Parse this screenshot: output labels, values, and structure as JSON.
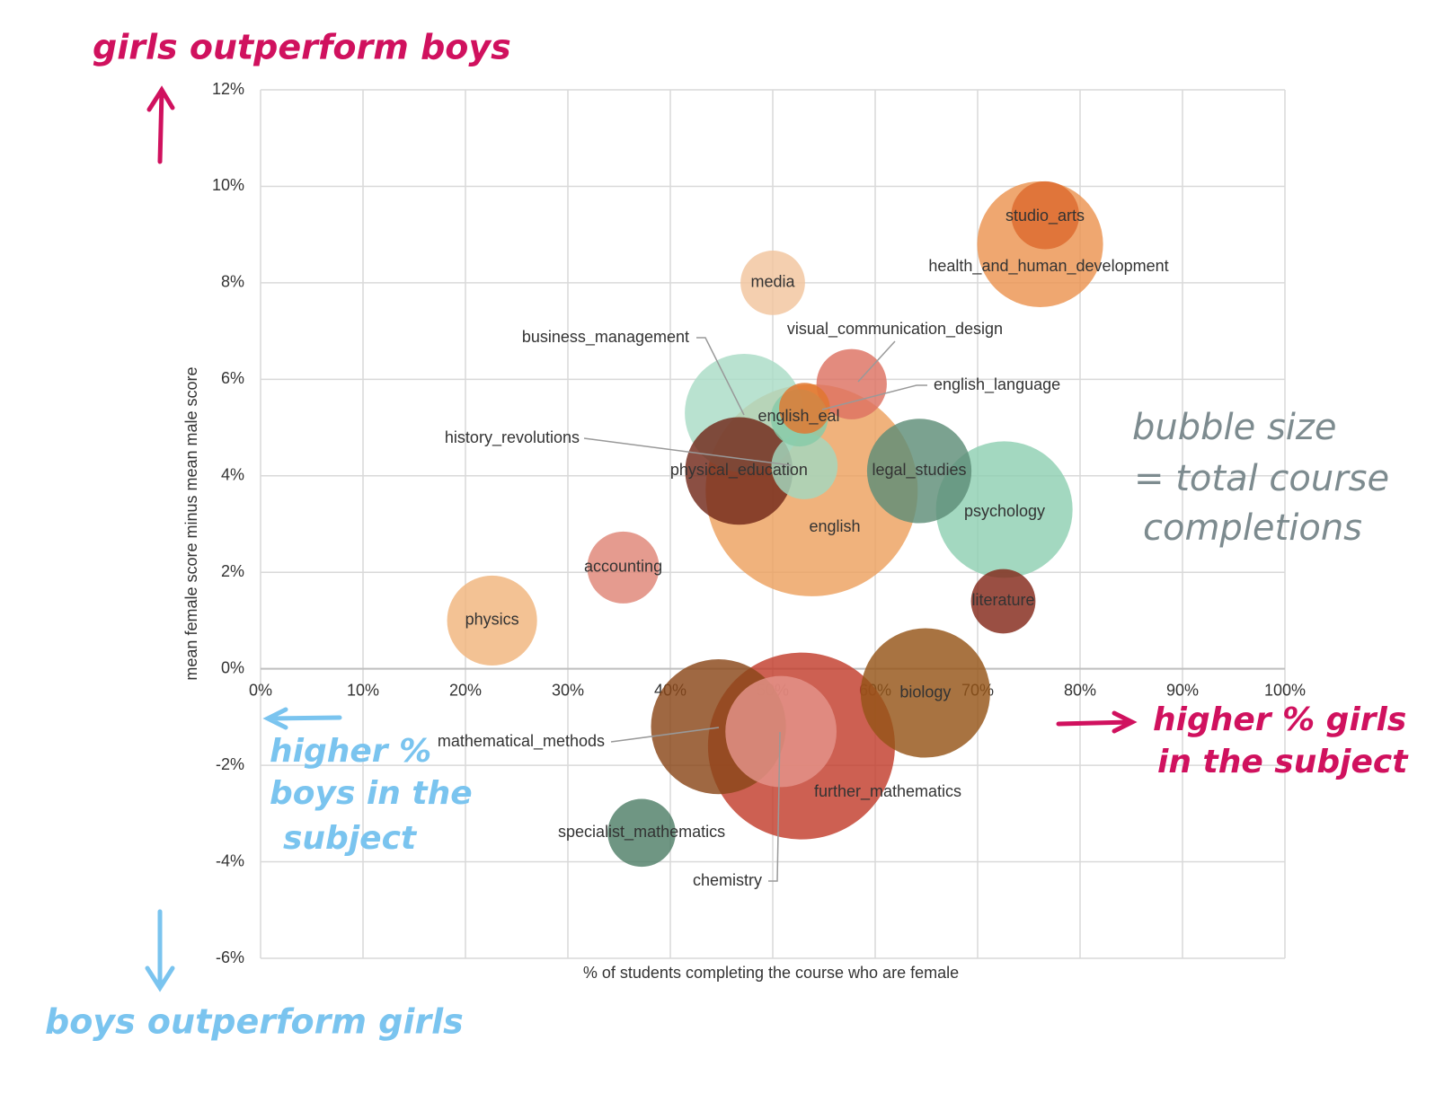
{
  "chart_data": {
    "type": "bubble",
    "xlabel": "% of students completing the course who are female",
    "ylabel": "mean female score minus mean male score",
    "categories": [
      "english",
      "further_mathematics",
      "psychology",
      "mathematical_methods",
      "biology",
      "health_and_human_development",
      "business_management",
      "chemistry",
      "physical_education",
      "legal_studies",
      "physics",
      "accounting",
      "visual_communication_design",
      "studio_arts",
      "specialist_mathematics",
      "media",
      "literature",
      "history_revolutions",
      "english_eal",
      "english_language"
    ],
    "x": [
      53.8,
      52.8,
      72.6,
      44.7,
      64.9,
      76.1,
      47.2,
      50.8,
      46.7,
      64.3,
      22.6,
      35.4,
      57.7,
      76.6,
      37.2,
      50.0,
      72.5,
      53.1,
      52.6,
      53.1
    ],
    "values": [
      3.7,
      -1.6,
      3.3,
      -1.2,
      -0.5,
      8.8,
      5.3,
      -1.3,
      4.1,
      4.1,
      1.0,
      2.1,
      5.9,
      9.4,
      -3.4,
      8.0,
      1.4,
      4.2,
      5.2,
      5.4
    ],
    "sizes": [
      40000,
      31100,
      16600,
      16200,
      14900,
      14100,
      12500,
      11000,
      10300,
      9700,
      7200,
      4600,
      4400,
      4100,
      4100,
      3700,
      3700,
      3900,
      2900,
      2300
    ],
    "colors": [
      "#eda15f",
      "#c23d2c",
      "#8fd0b2",
      "#8a4718",
      "#955417",
      "#eb9450",
      "#a9dcc6",
      "#e4948a",
      "#71281a",
      "#5e8e77",
      "#f0b57c",
      "#df8576",
      "#dd7262",
      "#dd6a2e",
      "#4f7f68",
      "#f2c59e",
      "#84281a",
      "#a2d8bf",
      "#86cba8",
      "#e1762e"
    ],
    "xlim": [
      0,
      100
    ],
    "xticks": [
      {
        "value": 0,
        "label": "0%"
      },
      {
        "value": 10,
        "label": "10%"
      },
      {
        "value": 20,
        "label": "20%"
      },
      {
        "value": 30,
        "label": "30%"
      },
      {
        "value": 40,
        "label": "40%"
      },
      {
        "value": 50,
        "label": "50%"
      },
      {
        "value": 60,
        "label": "60%"
      },
      {
        "value": 70,
        "label": "70%"
      },
      {
        "value": 80,
        "label": "80%"
      },
      {
        "value": 90,
        "label": "90%"
      },
      {
        "value": 100,
        "label": "100%"
      }
    ],
    "ylim": [
      -6,
      12
    ],
    "yticks": [
      {
        "value": -6,
        "label": "-6%"
      },
      {
        "value": -4,
        "label": "-4%"
      },
      {
        "value": -2,
        "label": "-2%"
      },
      {
        "value": 0,
        "label": "0%"
      },
      {
        "value": 2,
        "label": "2%"
      },
      {
        "value": 4,
        "label": "4%"
      },
      {
        "value": 6,
        "label": "6%"
      },
      {
        "value": 8,
        "label": "8%"
      },
      {
        "value": 10,
        "label": "10%"
      },
      {
        "value": 12,
        "label": "12%"
      }
    ],
    "grid": true,
    "annotations": {
      "top": "girls outperform boys",
      "bottom": "boys outperform girls",
      "left": [
        "higher %",
        "boys in the",
        "subject"
      ],
      "right": [
        "higher % girls",
        "in the subject"
      ],
      "size_note": [
        "bubble size",
        "= total course",
        "completions"
      ]
    }
  }
}
